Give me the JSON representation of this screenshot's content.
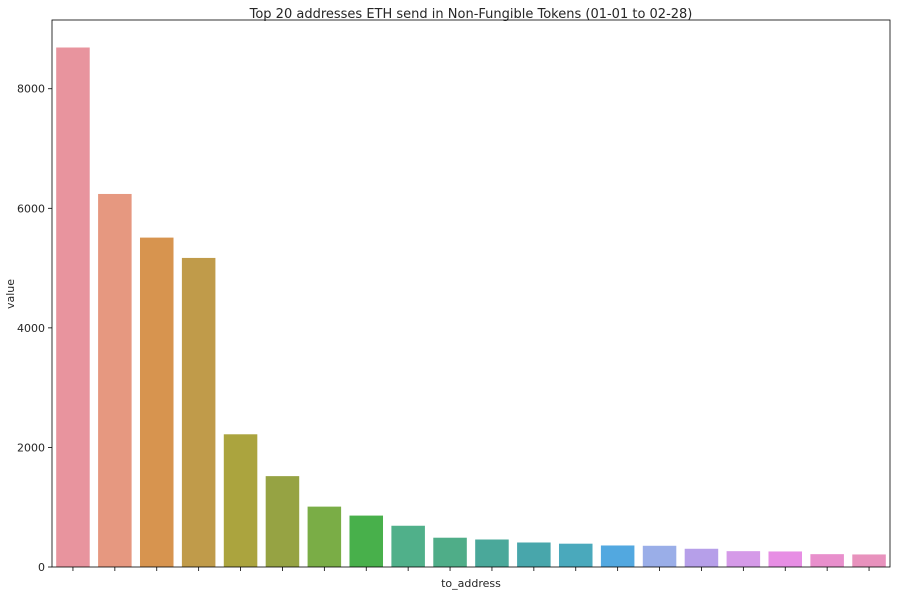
{
  "chart_data": {
    "type": "bar",
    "title": "Top 20 addresses ETH send in Non-Fungible Tokens (01-01 to 02-28)",
    "xlabel": "to_address",
    "ylabel": "value",
    "ylim": [
      0,
      9150
    ],
    "yticks": [
      0,
      2000,
      4000,
      6000,
      8000
    ],
    "y_tick_labels": [
      "0",
      "2000",
      "4000",
      "6000",
      "8000"
    ],
    "x_tick_labels_visible": false,
    "grid": false,
    "legend": "none",
    "values": [
      8690,
      6240,
      5510,
      5170,
      2220,
      1520,
      1010,
      860,
      690,
      490,
      460,
      410,
      390,
      360,
      355,
      305,
      265,
      260,
      215,
      210
    ],
    "colors": [
      "#e8949e",
      "#e69880",
      "#d7944f",
      "#c09b4a",
      "#aba43e",
      "#96a343",
      "#7aad46",
      "#48b04b",
      "#50b08a",
      "#4fad88",
      "#4aa89a",
      "#48a6ab",
      "#4aa9bc",
      "#52a8e0",
      "#9aaee8",
      "#b69fe9",
      "#d59ae8",
      "#e78ee4",
      "#e88fcc",
      "#e892bd"
    ]
  }
}
